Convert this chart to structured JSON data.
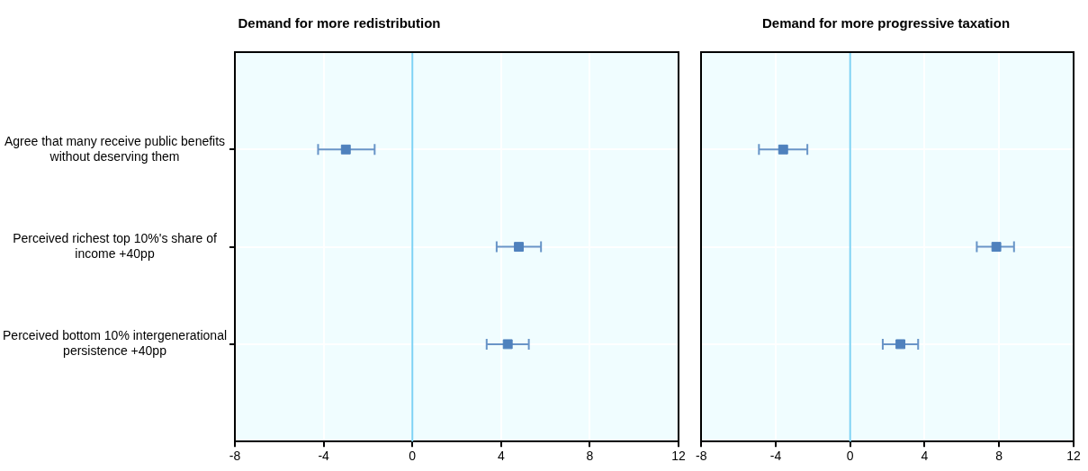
{
  "chart_data": [
    {
      "type": "scatter",
      "orientation": "horizontal",
      "title": "Demand for more redistribution",
      "categories": [
        "Agree that many receive public benefits without deserving them",
        "Perceived richest top 10%'s share of income +40pp",
        "Perceived bottom 10% intergenerational persistence +40pp"
      ],
      "series": [
        {
          "color": "#4f81bd",
          "values": [
            -3.0,
            4.8,
            4.3
          ],
          "errors": [
            [
              -4.25,
              -1.7
            ],
            [
              3.8,
              5.8
            ],
            [
              3.35,
              5.25
            ]
          ]
        }
      ],
      "xlim": [
        -8,
        12
      ],
      "xticks": [
        -8,
        -4,
        0,
        4,
        8,
        12
      ],
      "grid": true,
      "marker": "square",
      "ref_lines": [
        {
          "axis": "x",
          "value": 0,
          "color": "#7fd3f5"
        }
      ]
    },
    {
      "type": "scatter",
      "orientation": "horizontal",
      "title": "Demand for more progressive taxation",
      "categories": [
        null,
        null,
        null
      ],
      "series": [
        {
          "color": "#4f81bd",
          "values": [
            -3.6,
            7.85,
            2.7
          ],
          "errors": [
            [
              -4.9,
              -2.3
            ],
            [
              6.8,
              8.8
            ],
            [
              1.75,
              3.65
            ]
          ]
        }
      ],
      "xlim": [
        -8,
        12
      ],
      "xticks": [
        -8,
        -4,
        0,
        4,
        8,
        12
      ],
      "grid": true,
      "marker": "square",
      "tick_labels": "x",
      "ref_lines": [
        {
          "axis": "x",
          "value": 0,
          "color": "#7fd3f5"
        }
      ]
    }
  ]
}
